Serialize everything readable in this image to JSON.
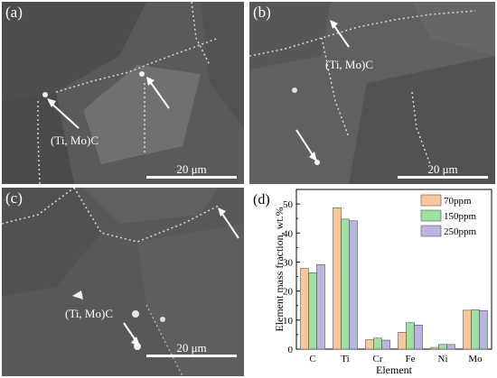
{
  "figure": {
    "panels": [
      {
        "label": "(a)",
        "annotation": "(Ti, Mo)C",
        "scale_label": "20 μm"
      },
      {
        "label": "(b)",
        "annotation": "(Ti, Mo)C",
        "scale_label": "20 μm"
      },
      {
        "label": "(c)",
        "annotation": "(Ti, Mo)C",
        "scale_label": "20 μm"
      },
      {
        "label": "(d)"
      }
    ]
  },
  "chart_data": {
    "type": "bar",
    "categories": [
      "C",
      "Ti",
      "Cr",
      "Fe",
      "Ni",
      "Mo"
    ],
    "series": [
      {
        "name": "70ppm",
        "color": "#f8c89a",
        "values": [
          27.8,
          48.7,
          3.2,
          5.8,
          0.6,
          13.4
        ]
      },
      {
        "name": "150ppm",
        "color": "#9ee0a2",
        "values": [
          26.3,
          44.8,
          3.8,
          9.1,
          1.6,
          13.6
        ]
      },
      {
        "name": "250ppm",
        "color": "#b9b4e0",
        "values": [
          29.1,
          44.2,
          3.1,
          8.3,
          1.6,
          13.3
        ]
      }
    ],
    "xlabel": "Element",
    "ylabel": "Element mass fraction, wt.%",
    "ylim": [
      0,
      55
    ],
    "yticks": [
      0,
      10,
      20,
      30,
      40,
      50
    ],
    "legend_position": "top-right",
    "grid": false
  }
}
